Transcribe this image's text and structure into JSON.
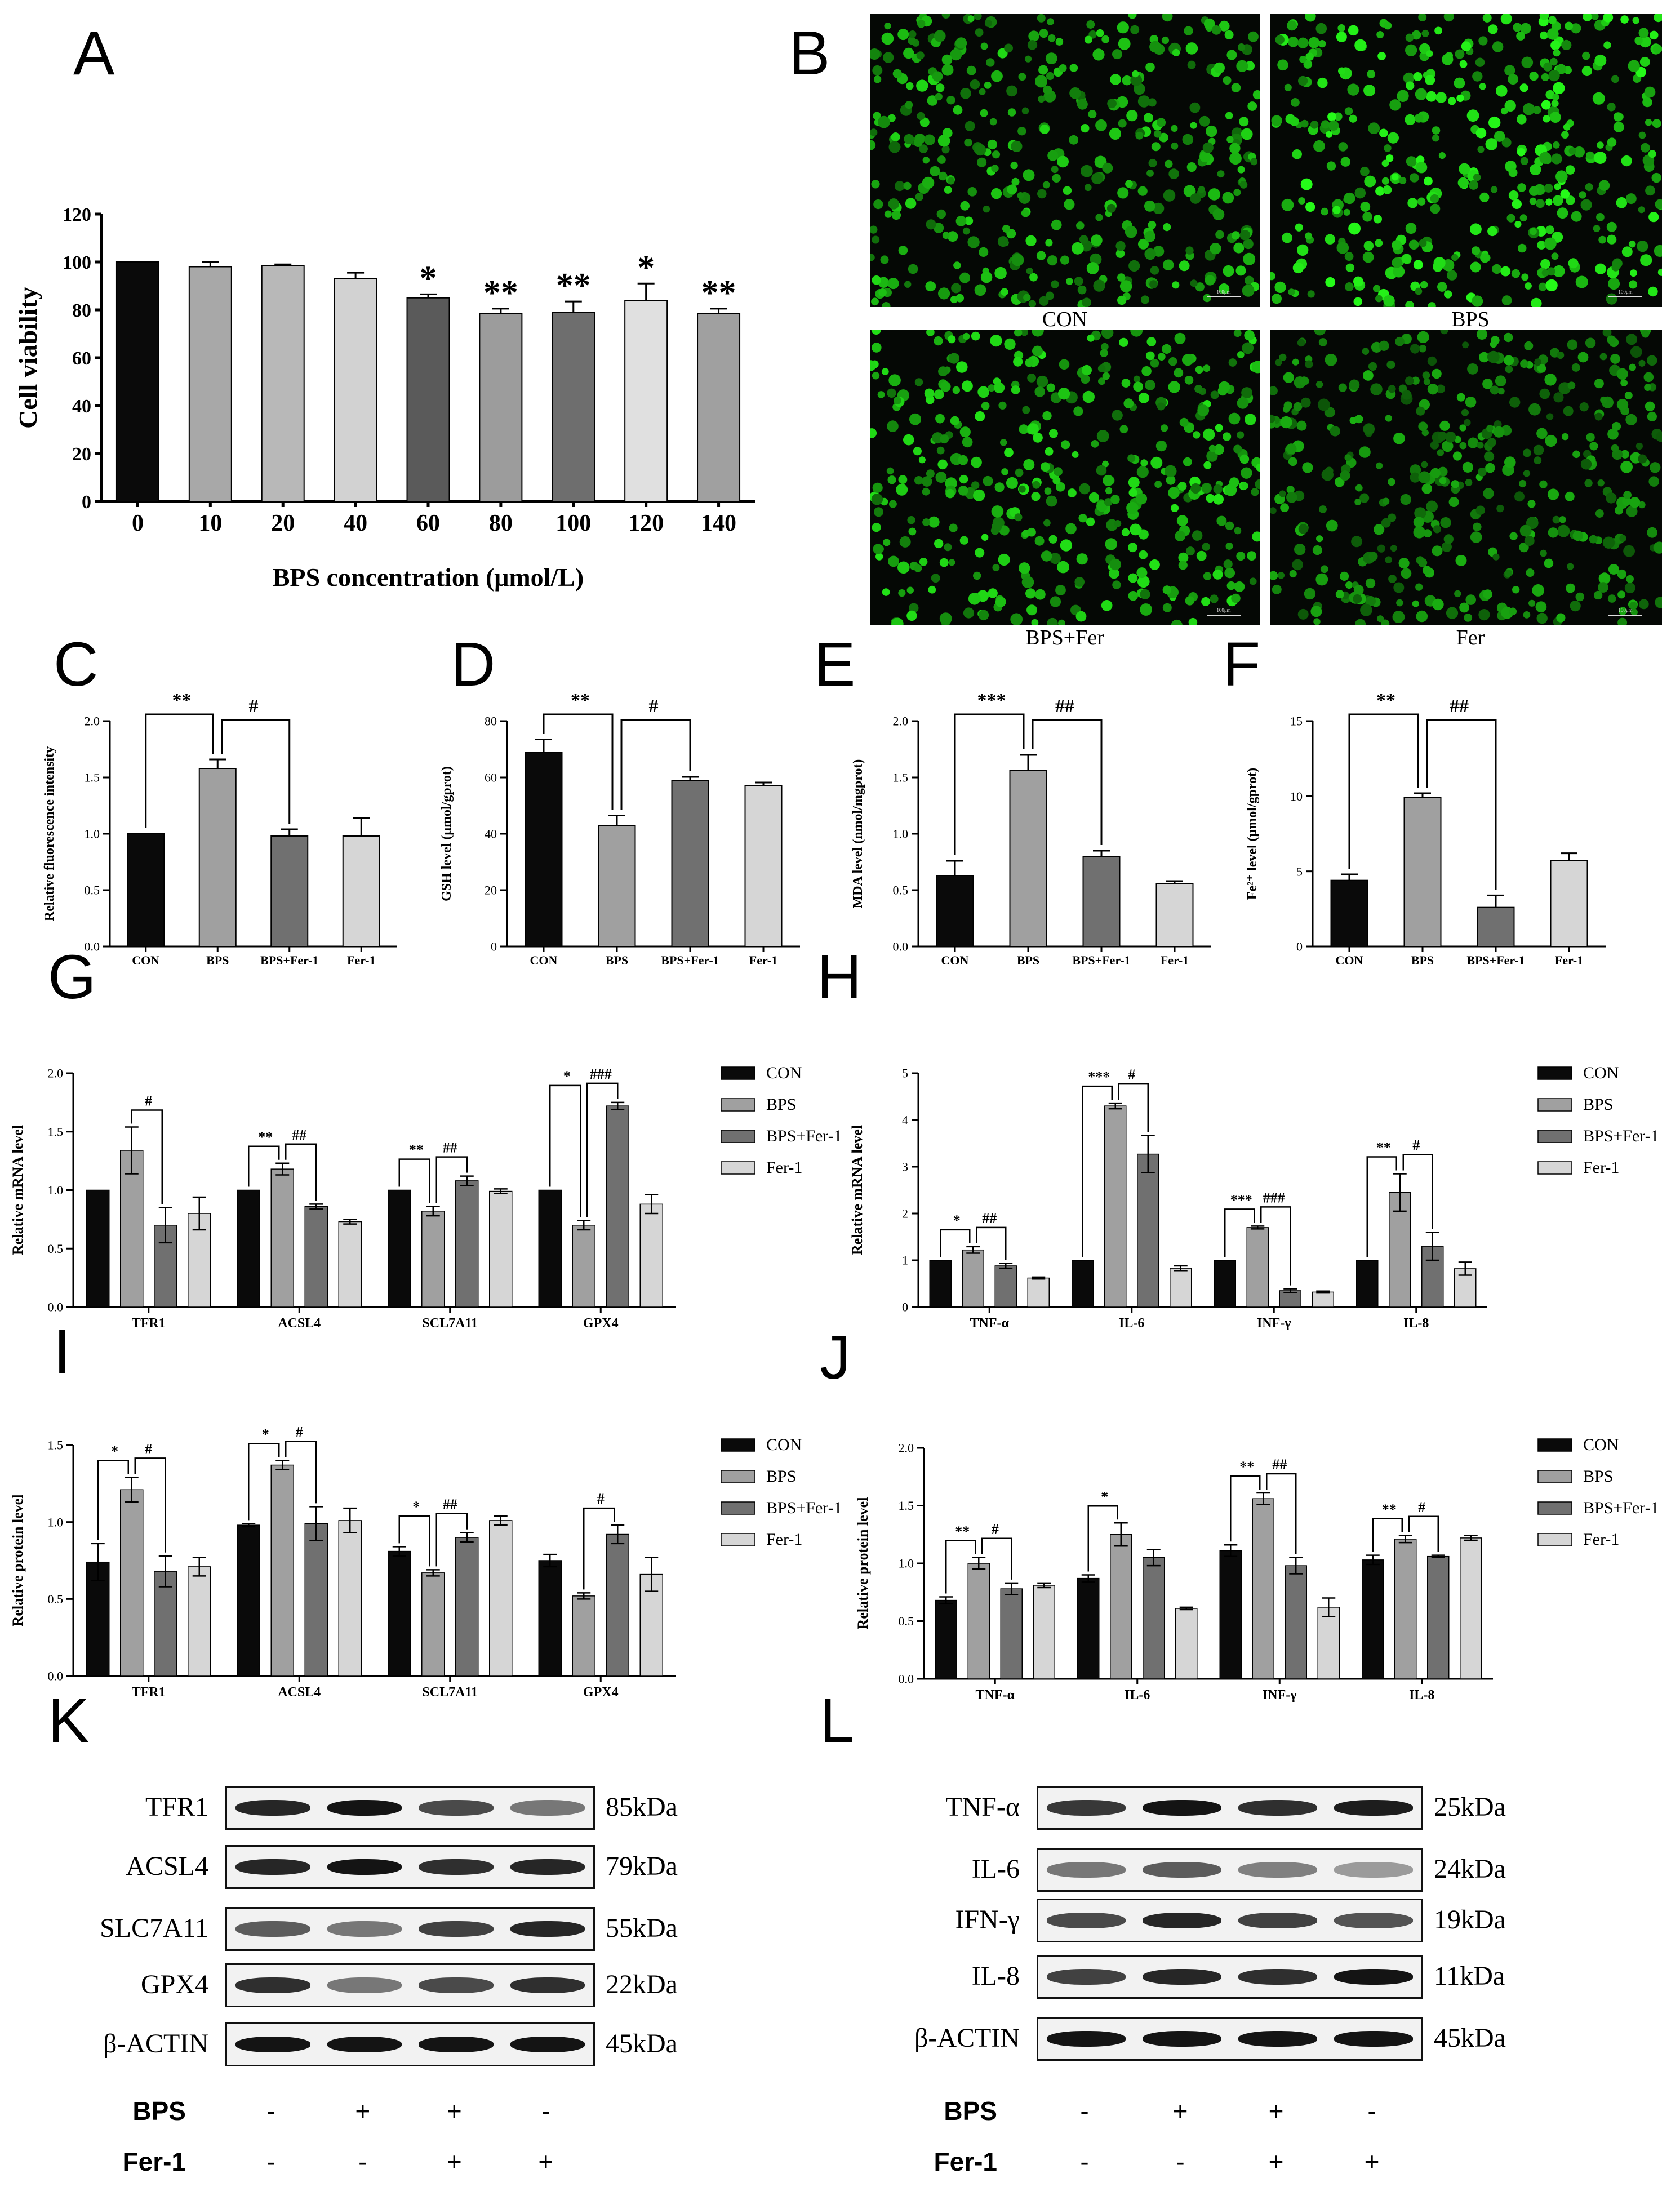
{
  "panels": {
    "A": "A",
    "B": "B",
    "C": "C",
    "D": "D",
    "E": "E",
    "F": "F",
    "G": "G",
    "H": "H",
    "I": "I",
    "J": "J",
    "K": "K",
    "L": "L"
  },
  "chart_data": [
    {
      "id": "A",
      "type": "bar",
      "categories": [
        "0",
        "10",
        "20",
        "40",
        "60",
        "80",
        "100",
        "120",
        "140"
      ],
      "values": [
        100,
        98,
        98.5,
        93,
        85,
        78.5,
        79,
        84,
        78.5
      ],
      "errors": [
        0,
        2,
        0.5,
        2.5,
        1.5,
        2,
        4.5,
        7,
        2
      ],
      "sig": [
        "",
        "",
        "",
        "",
        "*",
        "**",
        "**",
        "*",
        "**"
      ],
      "colors": [
        "#0a0a0a",
        "#a8a8a8",
        "#b8b8b8",
        "#d2d2d2",
        "#5a5a5a",
        "#9c9c9c",
        "#6e6e6e",
        "#e0e0e0",
        "#a0a0a0"
      ],
      "xlabel": "BPS concentration (μmol/L)",
      "ylabel": "Cell viability",
      "ylim": [
        0,
        120
      ],
      "yticks": [
        0,
        20,
        40,
        60,
        80,
        100,
        120
      ]
    },
    {
      "id": "C",
      "type": "bar",
      "categories": [
        "CON",
        "BPS",
        "BPS+Fer-1",
        "Fer-1"
      ],
      "values": [
        1.0,
        1.58,
        0.98,
        0.98
      ],
      "errors": [
        0,
        0.08,
        0.06,
        0.16
      ],
      "colors": [
        "#0a0a0a",
        "#a0a0a0",
        "#707070",
        "#d6d6d6"
      ],
      "ylabel": "Relative fluorescence intensity",
      "ylim": [
        0,
        2.0
      ],
      "yticks": [
        "0.0",
        "0.5",
        "1.0",
        "1.5",
        "2.0"
      ],
      "brackets": [
        {
          "from": 0,
          "to": 1,
          "label": "**"
        },
        {
          "from": 1,
          "to": 2,
          "label": "#"
        }
      ]
    },
    {
      "id": "D",
      "type": "bar",
      "categories": [
        "CON",
        "BPS",
        "BPS+Fer-1",
        "Fer-1"
      ],
      "values": [
        69,
        43,
        59,
        57
      ],
      "errors": [
        4.5,
        3.5,
        1.2,
        1.2
      ],
      "colors": [
        "#0a0a0a",
        "#a0a0a0",
        "#707070",
        "#d6d6d6"
      ],
      "ylabel": "GSH level (μmol/gprot)",
      "ylim": [
        0,
        80
      ],
      "yticks": [
        "0",
        "20",
        "40",
        "60",
        "80"
      ],
      "brackets": [
        {
          "from": 0,
          "to": 1,
          "label": "**"
        },
        {
          "from": 1,
          "to": 2,
          "label": "#"
        }
      ]
    },
    {
      "id": "E",
      "type": "bar",
      "categories": [
        "CON",
        "BPS",
        "BPS+Fer-1",
        "Fer-1"
      ],
      "values": [
        0.63,
        1.56,
        0.8,
        0.56
      ],
      "errors": [
        0.13,
        0.14,
        0.05,
        0.02
      ],
      "colors": [
        "#0a0a0a",
        "#a0a0a0",
        "#707070",
        "#d6d6d6"
      ],
      "ylabel": "MDA level (nmol/mgprot)",
      "ylim": [
        0,
        2.0
      ],
      "yticks": [
        "0.0",
        "0.5",
        "1.0",
        "1.5",
        "2.0"
      ],
      "brackets": [
        {
          "from": 0,
          "to": 1,
          "label": "***"
        },
        {
          "from": 1,
          "to": 2,
          "label": "##"
        }
      ]
    },
    {
      "id": "F",
      "type": "bar",
      "categories": [
        "CON",
        "BPS",
        "BPS+Fer-1",
        "Fer-1"
      ],
      "values": [
        4.4,
        9.9,
        2.6,
        5.7
      ],
      "errors": [
        0.4,
        0.3,
        0.8,
        0.5
      ],
      "colors": [
        "#0a0a0a",
        "#a0a0a0",
        "#707070",
        "#d6d6d6"
      ],
      "ylabel": "Fe²⁺ level (μmol/gprot)",
      "ylim": [
        0,
        15
      ],
      "yticks": [
        "0",
        "5",
        "10",
        "15"
      ],
      "brackets": [
        {
          "from": 0,
          "to": 1,
          "label": "**"
        },
        {
          "from": 1,
          "to": 2,
          "label": "##"
        }
      ]
    },
    {
      "id": "G",
      "type": "bar",
      "categories": [
        "TFR1",
        "ACSL4",
        "SCL7A11",
        "GPX4"
      ],
      "series": [
        {
          "name": "CON",
          "values": [
            1.0,
            1.0,
            1.0,
            1.0
          ],
          "errors": [
            0,
            0,
            0,
            0
          ],
          "color": "#0a0a0a"
        },
        {
          "name": "BPS",
          "values": [
            1.34,
            1.18,
            0.82,
            0.7
          ],
          "errors": [
            0.2,
            0.05,
            0.04,
            0.04
          ],
          "color": "#a0a0a0"
        },
        {
          "name": "BPS+Fer-1",
          "values": [
            0.7,
            0.86,
            1.08,
            1.72
          ],
          "errors": [
            0.15,
            0.02,
            0.04,
            0.03
          ],
          "color": "#707070"
        },
        {
          "name": "Fer-1",
          "values": [
            0.8,
            0.73,
            0.99,
            0.88
          ],
          "errors": [
            0.14,
            0.02,
            0.02,
            0.08
          ],
          "color": "#d6d6d6"
        }
      ],
      "ylabel": "Relative mRNA level",
      "ylim": [
        0,
        2.0
      ],
      "yticks": [
        "0.0",
        "0.5",
        "1.0",
        "1.5",
        "2.0"
      ],
      "brackets": [
        {
          "group": 0,
          "from": 1,
          "to": 2,
          "label": "#"
        },
        {
          "group": 1,
          "from": 0,
          "to": 1,
          "label": "**"
        },
        {
          "group": 1,
          "from": 1,
          "to": 2,
          "label": "##"
        },
        {
          "group": 2,
          "from": 0,
          "to": 1,
          "label": "**"
        },
        {
          "group": 2,
          "from": 1,
          "to": 2,
          "label": "##"
        },
        {
          "group": 3,
          "from": 0,
          "to": 1,
          "label": "*"
        },
        {
          "group": 3,
          "from": 1,
          "to": 2,
          "label": "###"
        }
      ],
      "legend": "right"
    },
    {
      "id": "H",
      "type": "bar",
      "categories": [
        "TNF-α",
        "IL-6",
        "INF-γ",
        "IL-8"
      ],
      "series": [
        {
          "name": "CON",
          "values": [
            1.0,
            1.0,
            1.0,
            1.0
          ],
          "errors": [
            0,
            0,
            0,
            0
          ],
          "color": "#0a0a0a"
        },
        {
          "name": "BPS",
          "values": [
            1.22,
            4.3,
            1.7,
            2.45
          ],
          "errors": [
            0.07,
            0.06,
            0.03,
            0.4
          ],
          "color": "#a0a0a0"
        },
        {
          "name": "BPS+Fer-1",
          "values": [
            0.88,
            3.27,
            0.35,
            1.3
          ],
          "errors": [
            0.05,
            0.4,
            0.04,
            0.3
          ],
          "color": "#707070"
        },
        {
          "name": "Fer-1",
          "values": [
            0.62,
            0.83,
            0.32,
            0.82
          ],
          "errors": [
            0.02,
            0.05,
            0.02,
            0.14
          ],
          "color": "#d6d6d6"
        }
      ],
      "ylabel": "Relative mRNA level",
      "ylim": [
        0,
        5
      ],
      "yticks": [
        "0",
        "1",
        "2",
        "3",
        "4",
        "5"
      ],
      "brackets": [
        {
          "group": 0,
          "from": 0,
          "to": 1,
          "label": "*"
        },
        {
          "group": 0,
          "from": 1,
          "to": 2,
          "label": "##"
        },
        {
          "group": 1,
          "from": 0,
          "to": 1,
          "label": "***"
        },
        {
          "group": 1,
          "from": 1,
          "to": 2,
          "label": "#"
        },
        {
          "group": 2,
          "from": 0,
          "to": 1,
          "label": "***"
        },
        {
          "group": 2,
          "from": 1,
          "to": 2,
          "label": "###"
        },
        {
          "group": 3,
          "from": 0,
          "to": 1,
          "label": "**"
        },
        {
          "group": 3,
          "from": 1,
          "to": 2,
          "label": "#"
        }
      ],
      "legend": "right"
    },
    {
      "id": "I",
      "type": "bar",
      "categories": [
        "TFR1",
        "ACSL4",
        "SCL7A11",
        "GPX4"
      ],
      "series": [
        {
          "name": "CON",
          "values": [
            0.74,
            0.98,
            0.81,
            0.75
          ],
          "errors": [
            0.12,
            0.01,
            0.03,
            0.04
          ],
          "color": "#0a0a0a"
        },
        {
          "name": "BPS",
          "values": [
            1.21,
            1.37,
            0.67,
            0.52
          ],
          "errors": [
            0.08,
            0.03,
            0.02,
            0.02
          ],
          "color": "#a0a0a0"
        },
        {
          "name": "BPS+Fer-1",
          "values": [
            0.68,
            0.99,
            0.9,
            0.92
          ],
          "errors": [
            0.1,
            0.11,
            0.03,
            0.06
          ],
          "color": "#707070"
        },
        {
          "name": "Fer-1",
          "values": [
            0.71,
            1.01,
            1.01,
            0.66
          ],
          "errors": [
            0.06,
            0.08,
            0.03,
            0.11
          ],
          "color": "#d6d6d6"
        }
      ],
      "ylabel": "Relative protein level",
      "ylim": [
        0,
        1.5
      ],
      "yticks": [
        "0.0",
        "0.5",
        "1.0",
        "1.5"
      ],
      "brackets": [
        {
          "group": 0,
          "from": 0,
          "to": 1,
          "label": "*"
        },
        {
          "group": 0,
          "from": 1,
          "to": 2,
          "label": "#"
        },
        {
          "group": 1,
          "from": 0,
          "to": 1,
          "label": "*"
        },
        {
          "group": 1,
          "from": 1,
          "to": 2,
          "label": "#"
        },
        {
          "group": 2,
          "from": 0,
          "to": 1,
          "label": "*"
        },
        {
          "group": 2,
          "from": 1,
          "to": 2,
          "label": "##"
        },
        {
          "group": 3,
          "from": 1,
          "to": 2,
          "label": "#"
        }
      ],
      "legend": "right"
    },
    {
      "id": "J",
      "type": "bar",
      "categories": [
        "TNF-α",
        "IL-6",
        "INF-γ",
        "IL-8"
      ],
      "series": [
        {
          "name": "CON",
          "values": [
            0.68,
            0.87,
            1.11,
            1.03
          ],
          "errors": [
            0.03,
            0.03,
            0.05,
            0.04
          ],
          "color": "#0a0a0a"
        },
        {
          "name": "BPS",
          "values": [
            1.0,
            1.25,
            1.56,
            1.21
          ],
          "errors": [
            0.05,
            0.1,
            0.05,
            0.03
          ],
          "color": "#a0a0a0"
        },
        {
          "name": "BPS+Fer-1",
          "values": [
            0.78,
            1.05,
            0.98,
            1.06
          ],
          "errors": [
            0.05,
            0.07,
            0.07,
            0.01
          ],
          "color": "#707070"
        },
        {
          "name": "Fer-1",
          "values": [
            0.81,
            0.61,
            0.62,
            1.22
          ],
          "errors": [
            0.02,
            0.01,
            0.08,
            0.02
          ],
          "color": "#d6d6d6"
        }
      ],
      "ylabel": "Relative protein level",
      "ylim": [
        0,
        2.0
      ],
      "yticks": [
        "0.0",
        "0.5",
        "1.0",
        "1.5",
        "2.0"
      ],
      "brackets": [
        {
          "group": 0,
          "from": 0,
          "to": 1,
          "label": "**"
        },
        {
          "group": 0,
          "from": 1,
          "to": 2,
          "label": "#"
        },
        {
          "group": 1,
          "from": 0,
          "to": 1,
          "label": "*"
        },
        {
          "group": 2,
          "from": 0,
          "to": 1,
          "label": "**"
        },
        {
          "group": 2,
          "from": 1,
          "to": 2,
          "label": "##"
        },
        {
          "group": 3,
          "from": 0,
          "to": 1,
          "label": "**"
        },
        {
          "group": 3,
          "from": 1,
          "to": 2,
          "label": "#"
        }
      ],
      "legend": "right"
    }
  ],
  "micrographs": {
    "captions": [
      "CON",
      "BPS",
      "BPS+Fer",
      "Fer"
    ],
    "scale_text": "100μm"
  },
  "blots": {
    "K": {
      "rows": [
        {
          "name": "TFR1",
          "kda": "85kDa"
        },
        {
          "name": "ACSL4",
          "kda": "79kDa"
        },
        {
          "name": "SLC7A11",
          "kda": "55kDa"
        },
        {
          "name": "GPX4",
          "kda": "22kDa"
        },
        {
          "name": "β-ACTIN",
          "kda": "45kDa"
        }
      ],
      "treatments": [
        {
          "label": "BPS",
          "signs": [
            "-",
            "+",
            "+",
            "-"
          ]
        },
        {
          "label": "Fer-1",
          "signs": [
            "-",
            "-",
            "+",
            "+"
          ]
        }
      ]
    },
    "L": {
      "rows": [
        {
          "name": "TNF-α",
          "kda": "25kDa"
        },
        {
          "name": "IL-6",
          "kda": "24kDa"
        },
        {
          "name": "IFN-γ",
          "kda": "19kDa"
        },
        {
          "name": "IL-8",
          "kda": "11kDa"
        },
        {
          "name": "β-ACTIN",
          "kda": "45kDa"
        }
      ],
      "treatments": [
        {
          "label": "BPS",
          "signs": [
            "-",
            "+",
            "+",
            "-"
          ]
        },
        {
          "label": "Fer-1",
          "signs": [
            "-",
            "-",
            "+",
            "+"
          ]
        }
      ]
    }
  }
}
